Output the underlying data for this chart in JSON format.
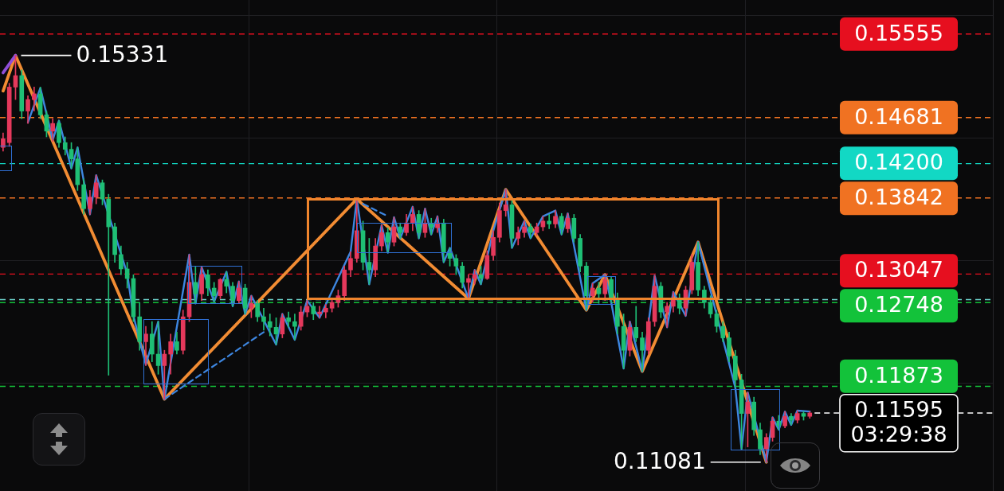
{
  "chart_data": {
    "type": "candlestick",
    "categories": [
      null,
      null,
      null,
      null,
      null,
      null,
      null,
      null,
      null,
      null,
      null,
      null,
      null,
      null,
      null,
      null,
      null,
      null,
      null,
      null,
      null,
      null,
      null,
      null,
      null,
      null,
      null,
      null,
      null,
      null,
      null,
      null,
      null,
      null,
      null,
      null,
      null,
      null,
      null,
      null,
      null,
      null,
      null,
      null,
      null,
      null,
      null,
      null,
      null,
      null,
      null,
      null,
      null,
      null,
      null,
      null,
      null,
      null,
      null,
      null,
      null,
      null,
      null,
      null,
      null,
      null,
      null,
      null,
      null,
      null,
      null,
      null,
      null,
      null,
      null,
      null,
      null,
      null,
      null,
      null,
      null,
      null,
      null,
      null,
      null,
      null,
      null,
      null,
      null,
      null,
      null,
      null,
      null,
      null,
      null,
      null,
      null,
      null,
      null,
      null,
      null,
      null,
      null,
      null,
      null,
      null,
      null,
      null,
      null,
      null,
      null,
      null,
      null,
      null,
      null,
      null,
      null,
      null,
      null,
      null,
      null,
      null,
      null,
      null,
      null,
      null,
      null,
      null,
      null,
      null,
      null,
      null,
      null,
      null,
      null,
      null,
      null,
      null,
      null,
      null,
      null,
      null,
      null,
      null,
      null,
      null,
      null,
      null,
      null,
      null,
      null,
      null,
      null,
      null,
      null,
      null,
      null,
      null,
      null,
      null
    ],
    "ohlc": [
      [
        0.1437,
        0.1452,
        0.1433,
        0.1446
      ],
      [
        0.1442,
        0.1504,
        0.1438,
        0.15
      ],
      [
        0.15,
        0.15331,
        0.1487,
        0.1512
      ],
      [
        0.1512,
        0.1518,
        0.1467,
        0.1475
      ],
      [
        0.1475,
        0.1491,
        0.1462,
        0.1487
      ],
      [
        0.1487,
        0.15,
        0.1475,
        0.1493
      ],
      [
        0.1493,
        0.15,
        0.1467,
        0.1471
      ],
      [
        0.1471,
        0.1475,
        0.1448,
        0.1454
      ],
      [
        0.1454,
        0.1467,
        0.1443,
        0.1462
      ],
      [
        0.1462,
        0.1465,
        0.1437,
        0.1442
      ],
      [
        0.1442,
        0.1448,
        0.1429,
        0.1435
      ],
      [
        0.1435,
        0.1442,
        0.1415,
        0.1425
      ],
      [
        0.1425,
        0.1437,
        0.1392,
        0.1398
      ],
      [
        0.1398,
        0.1404,
        0.1367,
        0.1373
      ],
      [
        0.1373,
        0.1392,
        0.1367,
        0.1385
      ],
      [
        0.1385,
        0.1408,
        0.1378,
        0.14
      ],
      [
        0.14,
        0.1403,
        0.1377,
        0.1383
      ],
      [
        0.1383,
        0.1388,
        0.1199,
        0.1354
      ],
      [
        0.1354,
        0.1358,
        0.1317,
        0.1325
      ],
      [
        0.1325,
        0.1334,
        0.1304,
        0.131
      ],
      [
        0.131,
        0.1317,
        0.129,
        0.13
      ],
      [
        0.13,
        0.1304,
        0.1255,
        0.126
      ],
      [
        0.126,
        0.1275,
        0.1225,
        0.1234
      ],
      [
        0.1234,
        0.125,
        0.1209,
        0.1242
      ],
      [
        0.1242,
        0.1255,
        0.1213,
        0.1221
      ],
      [
        0.1221,
        0.1255,
        0.12,
        0.1209
      ],
      [
        0.1209,
        0.1225,
        0.1174,
        0.1221
      ],
      [
        0.1221,
        0.1242,
        0.12,
        0.1234
      ],
      [
        0.1234,
        0.1244,
        0.1221,
        0.1225
      ],
      [
        0.1225,
        0.1267,
        0.1221,
        0.126
      ],
      [
        0.126,
        0.1325,
        0.1255,
        0.1296
      ],
      [
        0.1296,
        0.1313,
        0.1274,
        0.1284
      ],
      [
        0.1284,
        0.1312,
        0.1277,
        0.1304
      ],
      [
        0.1304,
        0.1309,
        0.1282,
        0.129
      ],
      [
        0.129,
        0.1296,
        0.1276,
        0.1282
      ],
      [
        0.1282,
        0.13,
        0.1279,
        0.1299
      ],
      [
        0.1299,
        0.1307,
        0.1285,
        0.1292
      ],
      [
        0.1292,
        0.1296,
        0.1271,
        0.1277
      ],
      [
        0.1277,
        0.1297,
        0.1274,
        0.129
      ],
      [
        0.129,
        0.1294,
        0.1263,
        0.1269
      ],
      [
        0.1269,
        0.1282,
        0.1259,
        0.1274
      ],
      [
        0.1274,
        0.1277,
        0.1255,
        0.126
      ],
      [
        0.126,
        0.1269,
        0.1246,
        0.1255
      ],
      [
        0.1255,
        0.1263,
        0.124,
        0.1249
      ],
      [
        0.1249,
        0.1259,
        0.1231,
        0.1242
      ],
      [
        0.1242,
        0.1263,
        0.1238,
        0.1259
      ],
      [
        0.1259,
        0.1265,
        0.1249,
        0.1255
      ],
      [
        0.1255,
        0.1263,
        0.1236,
        0.125
      ],
      [
        0.125,
        0.1271,
        0.1246,
        0.1265
      ],
      [
        0.1265,
        0.1277,
        0.126,
        0.1271
      ],
      [
        0.1271,
        0.1275,
        0.1257,
        0.1263
      ],
      [
        0.1263,
        0.1271,
        0.1259,
        0.1265
      ],
      [
        0.1265,
        0.1273,
        0.1259,
        0.1269
      ],
      [
        0.1269,
        0.1279,
        0.1265,
        0.1275
      ],
      [
        0.1275,
        0.1288,
        0.127,
        0.1282
      ],
      [
        0.1282,
        0.1313,
        0.1277,
        0.1309
      ],
      [
        0.1309,
        0.1328,
        0.1302,
        0.1321
      ],
      [
        0.1321,
        0.1383,
        0.1317,
        0.135
      ],
      [
        0.135,
        0.136,
        0.1309,
        0.1317
      ],
      [
        0.1317,
        0.1342,
        0.1294,
        0.1309
      ],
      [
        0.1309,
        0.1342,
        0.1302,
        0.1334
      ],
      [
        0.1334,
        0.1356,
        0.1329,
        0.1348
      ],
      [
        0.1348,
        0.1353,
        0.1327,
        0.1338
      ],
      [
        0.1338,
        0.1364,
        0.1334,
        0.1354
      ],
      [
        0.1354,
        0.1358,
        0.1342,
        0.1348
      ],
      [
        0.1348,
        0.1367,
        0.1345,
        0.1358
      ],
      [
        0.1358,
        0.1375,
        0.135,
        0.1367
      ],
      [
        0.1367,
        0.1371,
        0.1342,
        0.1348
      ],
      [
        0.1348,
        0.1373,
        0.1343,
        0.1358
      ],
      [
        0.1358,
        0.1363,
        0.1346,
        0.1353
      ],
      [
        0.1353,
        0.1365,
        0.1348,
        0.1358
      ],
      [
        0.1358,
        0.1362,
        0.1317,
        0.1327
      ],
      [
        0.1327,
        0.1332,
        0.1313,
        0.1321
      ],
      [
        0.1321,
        0.1325,
        0.1304,
        0.1313
      ],
      [
        0.1313,
        0.1317,
        0.129,
        0.1296
      ],
      [
        0.1296,
        0.1304,
        0.1279,
        0.13
      ],
      [
        0.13,
        0.1309,
        0.1294,
        0.1304
      ],
      [
        0.1304,
        0.1313,
        0.1294,
        0.13
      ],
      [
        0.13,
        0.1329,
        0.1299,
        0.1324
      ],
      [
        0.1324,
        0.135,
        0.1319,
        0.1343
      ],
      [
        0.1343,
        0.1379,
        0.1338,
        0.1371
      ],
      [
        0.1371,
        0.1393,
        0.1365,
        0.1377
      ],
      [
        0.1377,
        0.1382,
        0.1332,
        0.1342
      ],
      [
        0.1342,
        0.1354,
        0.1335,
        0.1348
      ],
      [
        0.1348,
        0.136,
        0.1343,
        0.1354
      ],
      [
        0.1354,
        0.1357,
        0.1342,
        0.1348
      ],
      [
        0.1348,
        0.1358,
        0.1345,
        0.1354
      ],
      [
        0.1354,
        0.1365,
        0.135,
        0.136
      ],
      [
        0.136,
        0.1367,
        0.1352,
        0.1357
      ],
      [
        0.1357,
        0.1371,
        0.1353,
        0.1365
      ],
      [
        0.1365,
        0.1368,
        0.1346,
        0.1352
      ],
      [
        0.1352,
        0.1368,
        0.1348,
        0.1363
      ],
      [
        0.1363,
        0.1367,
        0.1338,
        0.1342
      ],
      [
        0.1342,
        0.1346,
        0.1307,
        0.1313
      ],
      [
        0.1313,
        0.1317,
        0.1267,
        0.1282
      ],
      [
        0.1282,
        0.1295,
        0.1275,
        0.129
      ],
      [
        0.129,
        0.1296,
        0.1274,
        0.1284
      ],
      [
        0.1284,
        0.1304,
        0.1277,
        0.1299
      ],
      [
        0.1299,
        0.1302,
        0.1275,
        0.1279
      ],
      [
        0.1279,
        0.1285,
        0.1242,
        0.125
      ],
      [
        0.125,
        0.1263,
        0.1206,
        0.1225
      ],
      [
        0.1225,
        0.1255,
        0.1219,
        0.1249
      ],
      [
        0.1249,
        0.1271,
        0.1234,
        0.1238
      ],
      [
        0.1238,
        0.1244,
        0.1203,
        0.1225
      ],
      [
        0.1225,
        0.1259,
        0.1221,
        0.1255
      ],
      [
        0.1255,
        0.1303,
        0.125,
        0.1292
      ],
      [
        0.1292,
        0.1296,
        0.1259,
        0.1265
      ],
      [
        0.1265,
        0.1275,
        0.1249,
        0.1271
      ],
      [
        0.1271,
        0.1286,
        0.1265,
        0.1279
      ],
      [
        0.1279,
        0.1284,
        0.1263,
        0.1269
      ],
      [
        0.1269,
        0.1292,
        0.1261,
        0.1288
      ],
      [
        0.1288,
        0.1325,
        0.1284,
        0.1317
      ],
      [
        0.1317,
        0.1338,
        0.1282,
        0.1288
      ],
      [
        0.1288,
        0.1292,
        0.1269,
        0.1275
      ],
      [
        0.1275,
        0.1282,
        0.1259,
        0.1263
      ],
      [
        0.1263,
        0.1267,
        0.1244,
        0.125
      ],
      [
        0.125,
        0.1255,
        0.1234,
        0.1238
      ],
      [
        0.1238,
        0.1244,
        0.1213,
        0.1219
      ],
      [
        0.1219,
        0.1225,
        0.1186,
        0.1194
      ],
      [
        0.1194,
        0.12,
        0.1122,
        0.1159
      ],
      [
        0.1159,
        0.1181,
        0.1124,
        0.1171
      ],
      [
        0.1171,
        0.1176,
        0.1136,
        0.1142
      ],
      [
        0.1142,
        0.1149,
        0.1116,
        0.1122
      ],
      [
        0.1122,
        0.1138,
        0.11081,
        0.1134
      ],
      [
        0.1134,
        0.1155,
        0.113,
        0.1151
      ],
      [
        0.1151,
        0.1157,
        0.1142,
        0.1146
      ],
      [
        0.1146,
        0.1161,
        0.1144,
        0.1156
      ],
      [
        0.1156,
        0.1159,
        0.1147,
        0.1152
      ],
      [
        0.1152,
        0.1162,
        0.1149,
        0.1159
      ],
      [
        0.1159,
        0.1161,
        0.1152,
        0.1156
      ],
      [
        0.1156,
        0.1161,
        0.1154,
        0.11595
      ],
      null,
      null,
      null,
      null,
      null,
      null,
      null,
      null,
      null,
      null,
      null,
      null,
      null,
      null,
      null,
      null,
      null,
      null,
      null,
      null,
      null,
      null,
      null,
      null,
      null,
      null,
      null,
      null,
      null
    ],
    "colors": [
      "#e5395c",
      "#e5395c",
      "#e5395c",
      "#1fbf75",
      "#e5395c",
      "#e5395c",
      "#1fbf75",
      "#1fbf75",
      "#e5395c",
      "#1fbf75",
      "#1fbf75",
      "#1fbf75",
      "#1fbf75",
      "#1fbf75",
      "#e5395c",
      "#e5395c",
      "#1fbf75",
      "#1fbf75",
      "#1fbf75",
      "#1fbf75",
      "#1fbf75",
      "#1fbf75",
      "#1fbf75",
      "#e5395c",
      "#1fbf75",
      "#1fbf75",
      "#e5395c",
      "#e5395c",
      "#1fbf75",
      "#e5395c",
      "#e5395c",
      "#1fbf75",
      "#e5395c",
      "#1fbf75",
      "#1fbf75",
      "#e5395c",
      "#1fbf75",
      "#1fbf75",
      "#e5395c",
      "#1fbf75",
      "#e5395c",
      "#1fbf75",
      "#1fbf75",
      "#1fbf75",
      "#1fbf75",
      "#e5395c",
      "#1fbf75",
      "#1fbf75",
      "#e5395c",
      "#e5395c",
      "#1fbf75",
      "#e5395c",
      "#e5395c",
      "#e5395c",
      "#e5395c",
      "#e5395c",
      "#e5395c",
      "#e5395c",
      "#1fbf75",
      "#1fbf75",
      "#e5395c",
      "#e5395c",
      "#1fbf75",
      "#e5395c",
      "#1fbf75",
      "#e5395c",
      "#e5395c",
      "#1fbf75",
      "#e5395c",
      "#1fbf75",
      "#e5395c",
      "#1fbf75",
      "#1fbf75",
      "#1fbf75",
      "#1fbf75",
      "#e5395c",
      "#e5395c",
      "#1fbf75",
      "#e5395c",
      "#e5395c",
      "#e5395c",
      "#e5395c",
      "#1fbf75",
      "#e5395c",
      "#e5395c",
      "#1fbf75",
      "#e5395c",
      "#e5395c",
      "#1fbf75",
      "#e5395c",
      "#1fbf75",
      "#e5395c",
      "#1fbf75",
      "#1fbf75",
      "#1fbf75",
      "#e5395c",
      "#1fbf75",
      "#e5395c",
      "#1fbf75",
      "#1fbf75",
      "#1fbf75",
      "#e5395c",
      "#1fbf75",
      "#1fbf75",
      "#e5395c",
      "#e5395c",
      "#1fbf75",
      "#e5395c",
      "#e5395c",
      "#1fbf75",
      "#e5395c",
      "#e5395c",
      "#1fbf75",
      "#1fbf75",
      "#1fbf75",
      "#1fbf75",
      "#1fbf75",
      "#1fbf75",
      "#1fbf75",
      "#1fbf75",
      "#e5395c",
      "#1fbf75",
      "#1fbf75",
      "#e5395c",
      "#e5395c",
      "#1fbf75",
      "#e5395c",
      "#1fbf75",
      "#e5395c",
      "#1fbf75",
      "#e5395c",
      null,
      null,
      null,
      null,
      null,
      null,
      null,
      null,
      null,
      null,
      null,
      null,
      null,
      null,
      null,
      null,
      null,
      null,
      null,
      null,
      null,
      null,
      null,
      null,
      null,
      null,
      null,
      null,
      null
    ],
    "series": [
      {
        "type": "line",
        "color": "#3d86e0",
        "values": [
          null,
          null,
          null,
          null,
          0.1463,
          null,
          0.1499,
          null,
          0.1445,
          0.1465,
          null,
          0.1415,
          0.1437,
          null,
          0.1367,
          0.1408,
          null,
          null,
          null,
          null,
          0.1305,
          0.1261,
          null,
          0.121,
          null,
          0.1255,
          0.1174,
          null,
          null,
          null,
          0.1325,
          0.1274,
          0.1312,
          null,
          0.1276,
          null,
          0.1307,
          0.1271,
          0.1297,
          0.1263,
          0.1282,
          null,
          null,
          null,
          0.1231,
          0.1263,
          null,
          0.1236,
          null,
          0.1277,
          null,
          0.1259,
          null,
          null,
          null,
          null,
          0.1328,
          0.1383,
          null,
          0.1294,
          null,
          0.1356,
          0.1327,
          0.1364,
          0.1342,
          null,
          0.1375,
          0.1342,
          0.1373,
          0.1346,
          0.1365,
          0.1317,
          0.1332,
          null,
          null,
          0.1279,
          0.1309,
          0.1294,
          null,
          0.135,
          null,
          0.1393,
          0.1332,
          null,
          0.136,
          0.1342,
          null,
          0.1365,
          null,
          0.1371,
          0.1346,
          0.1368,
          null,
          null,
          0.1267,
          0.1295,
          null,
          0.1304,
          0.1275,
          null,
          0.1206,
          0.1255,
          null,
          0.1203,
          null,
          0.1303,
          null,
          0.1249,
          0.1286,
          null,
          0.1261,
          null,
          0.1338,
          null,
          null,
          null,
          null,
          null,
          0.1186,
          0.1122,
          0.1181,
          null,
          null,
          0.11081,
          0.1155,
          0.1142,
          0.1161,
          0.1147,
          0.1162,
          null,
          0.1161,
          null,
          null,
          null,
          null,
          null,
          null,
          null,
          null,
          null,
          null,
          null,
          null,
          null,
          null,
          null,
          null,
          null,
          null,
          null,
          null,
          null,
          null,
          null,
          null,
          null,
          null,
          null,
          null,
          null
        ]
      },
      {
        "type": "line",
        "color": "#3d86e0",
        "line_style": "dashed",
        "values": [
          null,
          null,
          null,
          null,
          null,
          null,
          null,
          null,
          null,
          null,
          null,
          null,
          null,
          null,
          null,
          null,
          null,
          null,
          null,
          null,
          null,
          null,
          null,
          null,
          null,
          null,
          0.1174,
          null,
          null,
          null,
          null,
          null,
          null,
          null,
          null,
          null,
          null,
          null,
          null,
          null,
          null,
          null,
          0.1244,
          null,
          null,
          null,
          null,
          null,
          null,
          null,
          null,
          null,
          null,
          null,
          null,
          null,
          null,
          null,
          null,
          null,
          null,
          null,
          null,
          null,
          null,
          null,
          null,
          null,
          null,
          null,
          null,
          null,
          null,
          null,
          null,
          null,
          null,
          null,
          null,
          null,
          null,
          null,
          null,
          null,
          null,
          null,
          null,
          null,
          null,
          null,
          null,
          null,
          null,
          null,
          null,
          null,
          null,
          null,
          null,
          null,
          null,
          null,
          null,
          null,
          null,
          null,
          null,
          null,
          null,
          null,
          null,
          null,
          null,
          null,
          null,
          null,
          null,
          null,
          null,
          null,
          null,
          null,
          null,
          null,
          null,
          null,
          null,
          null,
          null,
          null,
          null,
          null,
          null,
          null,
          null,
          null,
          null,
          null,
          null,
          null,
          null,
          null,
          null,
          null,
          null,
          null,
          null,
          null,
          null,
          null,
          null,
          null,
          null,
          null,
          null,
          null,
          null,
          null,
          null,
          null
        ]
      },
      {
        "type": "line",
        "color": "#3d86e0",
        "line_style": "dashed",
        "values": [
          null,
          null,
          null,
          null,
          null,
          null,
          null,
          null,
          null,
          null,
          null,
          null,
          null,
          null,
          null,
          null,
          null,
          null,
          null,
          null,
          null,
          null,
          null,
          null,
          null,
          null,
          null,
          null,
          null,
          null,
          null,
          null,
          null,
          null,
          null,
          null,
          null,
          null,
          null,
          null,
          null,
          null,
          null,
          null,
          null,
          null,
          null,
          null,
          null,
          null,
          null,
          null,
          null,
          null,
          null,
          null,
          null,
          null,
          0.1378,
          null,
          null,
          null,
          0.1365,
          null,
          null,
          null,
          null,
          null,
          null,
          null,
          null,
          null,
          null,
          null,
          null,
          null,
          null,
          null,
          null,
          null,
          null,
          null,
          null,
          null,
          null,
          null,
          null,
          null,
          null,
          null,
          null,
          null,
          null,
          null,
          null,
          null,
          null,
          null,
          null,
          null,
          null,
          null,
          null,
          null,
          null,
          null,
          null,
          null,
          null,
          null,
          null,
          null,
          null,
          null,
          null,
          null,
          null,
          null,
          null,
          null,
          null,
          null,
          null,
          null,
          null,
          null,
          null,
          null,
          null,
          null,
          null,
          null,
          null,
          null,
          null,
          null,
          null,
          null,
          null,
          null,
          null,
          null,
          null,
          null,
          null,
          null,
          null,
          null,
          null,
          null,
          null,
          null,
          null,
          null,
          null,
          null,
          null,
          null,
          null,
          null
        ]
      },
      {
        "type": "line",
        "color": "#8f4fd8",
        "values": [
          0.1515,
          null,
          0.15331,
          null,
          null,
          null,
          null,
          null,
          null,
          null,
          null,
          null,
          null,
          null,
          null,
          null,
          null,
          null,
          null,
          null,
          null,
          null,
          null,
          null,
          null,
          null,
          null,
          null,
          null,
          null,
          null,
          null,
          null,
          null,
          null,
          null,
          null,
          null,
          null,
          null,
          null,
          null,
          null,
          null,
          null,
          null,
          null,
          null,
          null,
          null,
          null,
          null,
          null,
          null,
          null,
          null,
          null,
          null,
          null,
          null,
          null,
          null,
          null,
          null,
          null,
          null,
          null,
          null,
          null,
          null,
          null,
          null,
          null,
          null,
          null,
          null,
          null,
          null,
          null,
          null,
          null,
          null,
          null,
          null,
          null,
          null,
          null,
          null,
          null,
          null,
          null,
          null,
          null,
          null,
          null,
          null,
          null,
          null,
          null,
          null,
          null,
          null,
          null,
          null,
          null,
          null,
          null,
          null,
          null,
          null,
          null,
          null,
          null,
          null,
          null,
          null,
          null,
          null,
          null,
          null,
          null,
          null,
          null,
          null,
          null,
          null,
          null,
          null,
          null,
          null,
          null,
          null,
          null,
          null,
          null,
          null,
          null,
          null,
          null,
          null,
          null,
          null,
          null,
          null,
          null,
          null,
          null,
          null,
          null,
          null,
          null,
          null,
          null,
          null,
          null,
          null,
          null,
          null,
          null,
          null
        ]
      },
      {
        "type": "line",
        "color": "#f28c33",
        "values": [
          0.1496,
          null,
          0.15331,
          null,
          null,
          null,
          null,
          null,
          null,
          null,
          null,
          null,
          null,
          null,
          null,
          null,
          null,
          null,
          null,
          null,
          null,
          null,
          null,
          null,
          null,
          null,
          0.1174,
          null,
          null,
          null,
          null,
          null,
          null,
          null,
          null,
          null,
          null,
          null,
          null,
          null,
          null,
          null,
          null,
          null,
          null,
          null,
          null,
          null,
          null,
          null,
          null,
          null,
          null,
          null,
          null,
          null,
          null,
          0.1383,
          null,
          null,
          null,
          null,
          null,
          null,
          null,
          null,
          null,
          null,
          null,
          null,
          null,
          null,
          null,
          null,
          null,
          0.1279,
          null,
          null,
          null,
          null,
          null,
          0.1393,
          null,
          null,
          null,
          null,
          null,
          null,
          null,
          null,
          null,
          null,
          null,
          null,
          0.1267,
          null,
          null,
          0.1304,
          null,
          null,
          null,
          null,
          null,
          0.1203,
          null,
          null,
          null,
          null,
          null,
          null,
          null,
          null,
          0.1338,
          null,
          null,
          null,
          null,
          null,
          null,
          null,
          null,
          null,
          null,
          0.11081,
          null,
          null,
          null,
          null,
          null,
          null,
          null,
          null,
          null,
          null,
          null,
          null,
          null,
          null,
          null,
          null,
          null,
          null,
          null,
          null,
          null,
          null,
          null,
          null,
          null,
          null,
          null,
          null,
          null,
          null,
          null,
          null,
          null,
          null,
          null,
          null
        ]
      }
    ],
    "ylim": [
      0.1078,
      0.1591
    ],
    "yticks": [
      {
        "value": 0.1191,
        "label": null
      },
      {
        "value": 0.1319,
        "label": null
      },
      {
        "value": 0.1447,
        "label": null
      },
      {
        "value": 0.1575,
        "label": null
      }
    ],
    "grid": true,
    "tick_labels": false,
    "ref_lines": [
      {
        "axis": "y",
        "value": 0.15555,
        "label": "0.15555",
        "color": "#e60f1f",
        "line_style": "dashed"
      },
      {
        "axis": "y",
        "value": 0.14681,
        "label": "0.14681",
        "color": "#f07222",
        "line_style": "dashed"
      },
      {
        "axis": "y",
        "value": 0.142,
        "label": "0.14200",
        "color": "#12d8c4",
        "line_style": "dashed"
      },
      {
        "axis": "y",
        "value": 0.13842,
        "label": "0.13842",
        "color": "#f07222",
        "line_style": "dashed"
      },
      {
        "axis": "y",
        "value": 0.13047,
        "label": "0.13047",
        "color": "#e60f1f",
        "line_style": "dashed"
      },
      {
        "axis": "y",
        "value": 0.1278,
        "color": "#6fd6cf",
        "line_style": "dashed"
      },
      {
        "axis": "y",
        "value": 0.12748,
        "label": "0.12748",
        "color": "#13c23a",
        "line_style": "dashed"
      },
      {
        "axis": "y",
        "value": 0.11873,
        "label": "0.11873",
        "color": "#13c23a",
        "line_style": "dashed"
      },
      {
        "axis": "y",
        "value": 0.11595,
        "label": "0.11595\n03:29:38",
        "color": "#ffffff",
        "line_style": "dashed"
      }
    ],
    "annotations": [
      "0.15331",
      "0.11081"
    ]
  }
}
